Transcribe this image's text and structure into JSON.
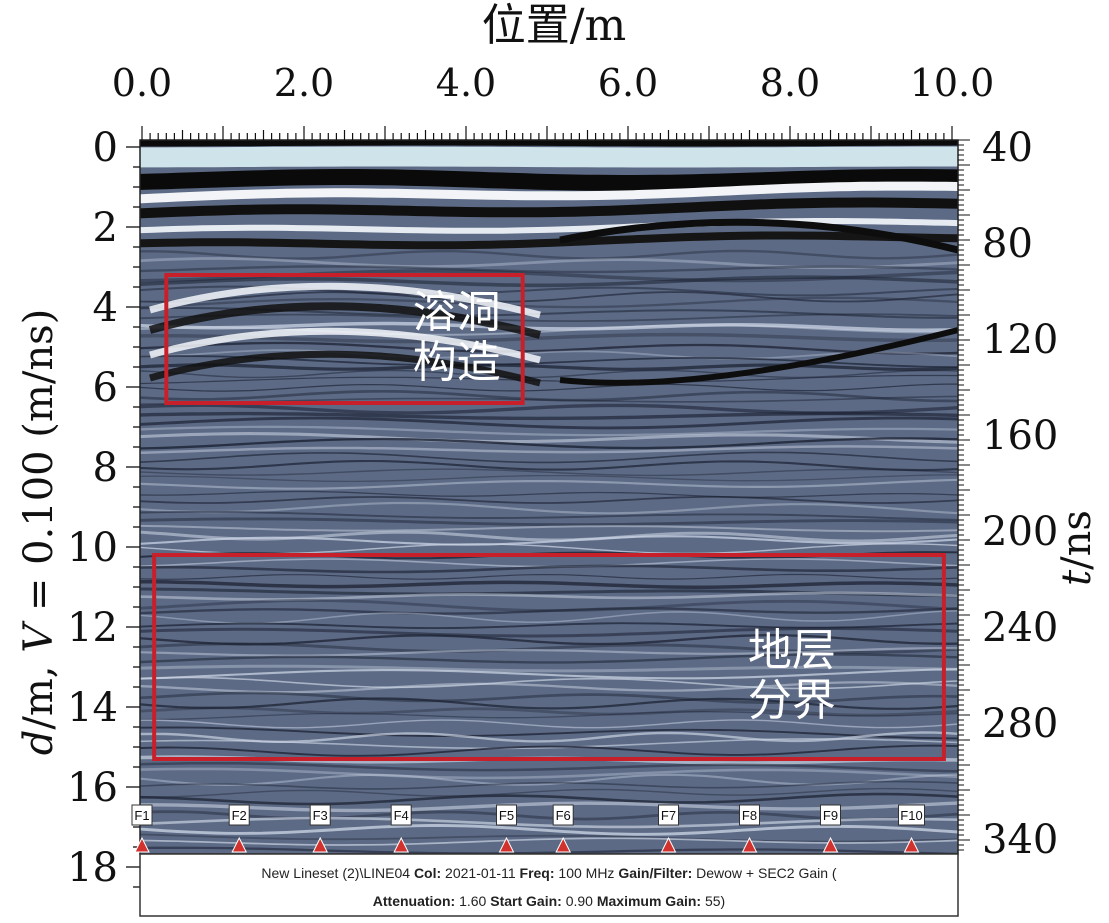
{
  "chart_data": {
    "type": "heatmap",
    "title": "",
    "top_axis": {
      "label": "位置/m",
      "ticks": [
        0.0,
        2.0,
        4.0,
        6.0,
        8.0,
        10.0
      ],
      "tick_labels": [
        "0.0",
        "2.0",
        "4.0",
        "6.0",
        "8.0",
        "10.0"
      ],
      "range": [
        0,
        10
      ]
    },
    "left_axis": {
      "label_parts": [
        "d",
        "/m, ",
        "V",
        " = 0.100 (m/ns)"
      ],
      "ticks": [
        0,
        2,
        4,
        6,
        8,
        10,
        12,
        14,
        16,
        18
      ],
      "range": [
        0,
        18.6
      ]
    },
    "right_axis": {
      "label_parts": [
        "t",
        "/ns"
      ],
      "ticks": [
        40,
        80,
        120,
        160,
        200,
        240,
        280,
        340
      ],
      "positions_depth": [
        0,
        2.4,
        4.8,
        7.2,
        9.6,
        12.0,
        14.4,
        17.3
      ]
    },
    "annotations": [
      {
        "lines": [
          "溶洞",
          "构造"
        ],
        "box_x": [
          0.3,
          4.7
        ],
        "box_depth": [
          3.2,
          6.4
        ],
        "color": "#c8202a"
      },
      {
        "lines": [
          "地层",
          "分界"
        ],
        "box_x": [
          0.15,
          9.9
        ],
        "box_depth": [
          10.2,
          15.3
        ],
        "color": "#c8202a"
      }
    ],
    "markers": [
      {
        "label": "F1",
        "x": 0.0
      },
      {
        "label": "F2",
        "x": 1.2
      },
      {
        "label": "F3",
        "x": 2.2
      },
      {
        "label": "F4",
        "x": 3.2
      },
      {
        "label": "F5",
        "x": 4.5
      },
      {
        "label": "F6",
        "x": 5.2
      },
      {
        "label": "F7",
        "x": 6.5
      },
      {
        "label": "F8",
        "x": 7.5
      },
      {
        "label": "F9",
        "x": 8.5
      },
      {
        "label": "F10",
        "x": 9.5
      }
    ],
    "info_lines": [
      [
        {
          "t": "New Lineset (2)\\LINE04  ",
          "b": false
        },
        {
          "t": "Col:",
          "b": true
        },
        {
          "t": " 2021-01-11  ",
          "b": false
        },
        {
          "t": "Freq:",
          "b": true
        },
        {
          "t": " 100 MHz  ",
          "b": false
        },
        {
          "t": "Gain/Filter:",
          "b": true
        },
        {
          "t": " Dewow + SEC2 Gain (",
          "b": false
        }
      ],
      [
        {
          "t": "Attenuation:",
          "b": true
        },
        {
          "t": " 1.60  ",
          "b": false
        },
        {
          "t": "Start Gain:",
          "b": true
        },
        {
          "t": " 0.90  ",
          "b": false
        },
        {
          "t": "Maximum Gain:",
          "b": true
        },
        {
          "t": " 55)",
          "b": false
        }
      ]
    ],
    "colors": {
      "box": "#c8202a",
      "background": "#5c6a85",
      "marker": "#d2322e"
    }
  }
}
